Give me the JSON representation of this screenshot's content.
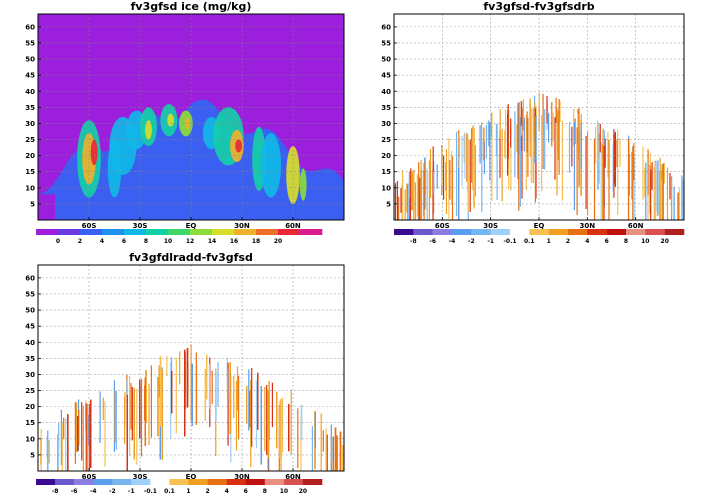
{
  "chart_data": [
    {
      "type": "heatmap",
      "title": "fv3gfsd ice (mg/kg)",
      "background": "#9b1fdc",
      "x_ticks": [
        "60S",
        "30S",
        "EQ",
        "30N",
        "60N"
      ],
      "y_ticks": [
        "5",
        "10",
        "15",
        "20",
        "25",
        "30",
        "35",
        "40",
        "45",
        "50",
        "55",
        "60"
      ],
      "ylim": [
        0,
        64
      ],
      "xlim": [
        -90,
        90
      ],
      "grid": true,
      "colorbar": {
        "labels": [
          "0",
          "2",
          "4",
          "6",
          "8",
          "10",
          "12",
          "14",
          "16",
          "18",
          "20"
        ],
        "colors": [
          "#9b1fdc",
          "#6a3be0",
          "#3b5ff0",
          "#1f8ff0",
          "#10b8e8",
          "#15cfa8",
          "#3cd66a",
          "#8cdc3a",
          "#d8dc2a",
          "#f0b02a",
          "#f06e2a",
          "#e8283a",
          "#d81e8c"
        ]
      },
      "blobs": [
        {
          "lat": -60,
          "z": 19,
          "w": 7,
          "h": 12,
          "color": "#15cfa8"
        },
        {
          "lat": -60,
          "z": 19,
          "w": 4,
          "h": 8,
          "color": "#f0b02a"
        },
        {
          "lat": -57,
          "z": 21,
          "w": 2,
          "h": 4,
          "color": "#e8283a"
        },
        {
          "lat": -45,
          "z": 16,
          "w": 4,
          "h": 9,
          "color": "#10b8e8"
        },
        {
          "lat": -40,
          "z": 23,
          "w": 8,
          "h": 9,
          "color": "#10b8e8"
        },
        {
          "lat": -32,
          "z": 28,
          "w": 6,
          "h": 6,
          "color": "#10b8e8"
        },
        {
          "lat": -25,
          "z": 29,
          "w": 5,
          "h": 6,
          "color": "#15cfa8"
        },
        {
          "lat": -25,
          "z": 28,
          "w": 2,
          "h": 3,
          "color": "#d8dc2a"
        },
        {
          "lat": -13,
          "z": 31,
          "w": 5,
          "h": 5,
          "color": "#15cfa8"
        },
        {
          "lat": -12,
          "z": 31,
          "w": 2,
          "h": 2,
          "color": "#d8dc2a"
        },
        {
          "lat": -3,
          "z": 30,
          "w": 4,
          "h": 4,
          "color": "#8cdc3a"
        },
        {
          "lat": -2,
          "z": 30,
          "w": 1,
          "h": 2,
          "color": "#f0b02a"
        },
        {
          "lat": 12,
          "z": 27,
          "w": 5,
          "h": 5,
          "color": "#10b8e8"
        },
        {
          "lat": 22,
          "z": 26,
          "w": 9,
          "h": 9,
          "color": "#15cfa8"
        },
        {
          "lat": 27,
          "z": 23,
          "w": 4,
          "h": 5,
          "color": "#f0b02a"
        },
        {
          "lat": 28,
          "z": 23,
          "w": 2,
          "h": 2,
          "color": "#e8283a"
        },
        {
          "lat": 40,
          "z": 19,
          "w": 4,
          "h": 10,
          "color": "#15cfa8"
        },
        {
          "lat": 47,
          "z": 17,
          "w": 6,
          "h": 10,
          "color": "#10b8e8"
        },
        {
          "lat": 60,
          "z": 14,
          "w": 4,
          "h": 9,
          "color": "#d8dc2a"
        },
        {
          "lat": 66,
          "z": 11,
          "w": 2,
          "h": 5,
          "color": "#8cdc3a"
        }
      ]
    },
    {
      "type": "heatmap",
      "title": "fv3gfsd-fv3gfsdrb",
      "background": "#ffffff",
      "x_ticks": [
        "60S",
        "30S",
        "EQ",
        "30N",
        "60N"
      ],
      "y_ticks": [
        "5",
        "10",
        "15",
        "20",
        "25",
        "30",
        "35",
        "40",
        "45",
        "50",
        "55",
        "60"
      ],
      "ylim": [
        0,
        64
      ],
      "xlim": [
        -90,
        90
      ],
      "grid": true,
      "colorbar": {
        "labels": [
          "-8",
          "-6",
          "-4",
          "-2",
          "-1",
          "-0.1",
          "0.1",
          "1",
          "2",
          "4",
          "6",
          "8",
          "10",
          "20"
        ],
        "colors": [
          "#3a0a90",
          "#6a5acd",
          "#8a7fe0",
          "#5a9ef0",
          "#78b6f0",
          "#9fd0f8",
          "#ffffff",
          "#f8c050",
          "#f0a020",
          "#e87010",
          "#d83010",
          "#c01010",
          "#e89080",
          "#d85050",
          "#b02020"
        ]
      }
    },
    {
      "type": "heatmap",
      "title": "fv3gfdlradd-fv3gfsd",
      "background": "#ffffff",
      "x_ticks": [
        "60S",
        "30S",
        "EQ",
        "30N",
        "60N"
      ],
      "y_ticks": [
        "5",
        "10",
        "15",
        "20",
        "25",
        "30",
        "35",
        "40",
        "45",
        "50",
        "55",
        "60"
      ],
      "ylim": [
        0,
        64
      ],
      "xlim": [
        -90,
        90
      ],
      "grid": true,
      "colorbar": {
        "labels": [
          "-8",
          "-6",
          "-4",
          "-2",
          "-1",
          "-0.1",
          "0.1",
          "1",
          "2",
          "4",
          "6",
          "8",
          "10",
          "20"
        ],
        "colors": [
          "#3a0a90",
          "#6a5acd",
          "#8a7fe0",
          "#5a9ef0",
          "#78b6f0",
          "#9fd0f8",
          "#ffffff",
          "#f8c050",
          "#f0a020",
          "#e87010",
          "#d83010",
          "#c01010",
          "#e89080",
          "#d85050",
          "#b02020"
        ]
      }
    }
  ]
}
